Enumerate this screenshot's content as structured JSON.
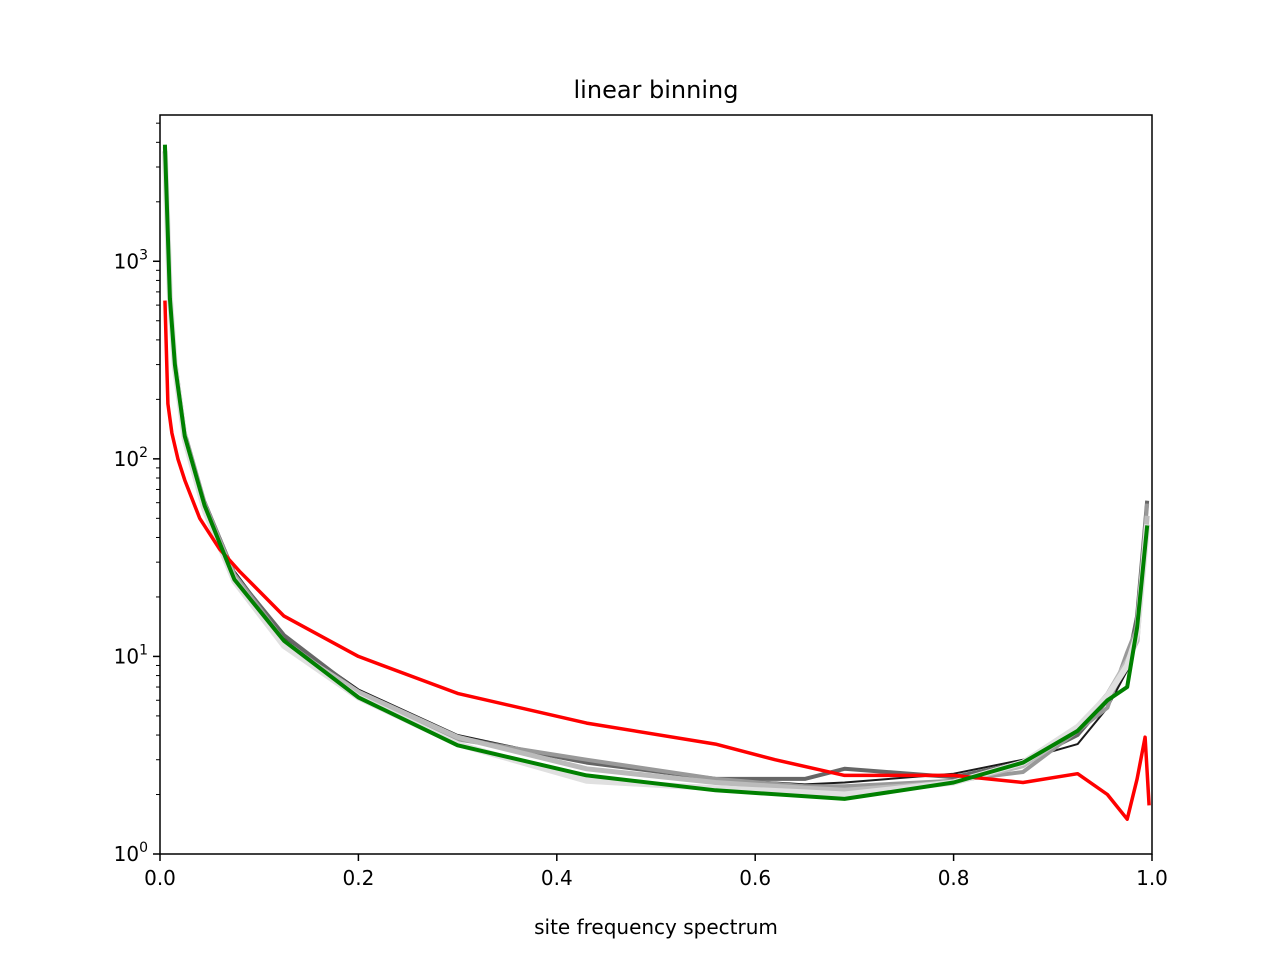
{
  "chart_data": {
    "type": "line",
    "title": "linear binning",
    "xlabel": "site frequency spectrum",
    "ylabel": "",
    "xlim": [
      0.0,
      1.0
    ],
    "ylim": [
      1,
      5500
    ],
    "yscale": "log",
    "grid": false,
    "x_ticks": [
      "0.0",
      "0.2",
      "0.4",
      "0.6",
      "0.8",
      "1.0"
    ],
    "y_ticks": [
      {
        "base": "10",
        "exp": "0"
      },
      {
        "base": "10",
        "exp": "1"
      },
      {
        "base": "10",
        "exp": "2"
      },
      {
        "base": "10",
        "exp": "3"
      }
    ],
    "series": [
      {
        "color": "#1a1a1a",
        "width": 2,
        "x": [
          0.005,
          0.01,
          0.015,
          0.025,
          0.045,
          0.075,
          0.125,
          0.2,
          0.3,
          0.43,
          0.56,
          0.65,
          0.69,
          0.8,
          0.87,
          0.925,
          0.955,
          0.975,
          0.985,
          0.995
        ],
        "y": [
          3600,
          700,
          320,
          135,
          62,
          27,
          12.5,
          6.8,
          4.0,
          2.9,
          2.4,
          2.25,
          2.3,
          2.55,
          3.0,
          3.6,
          5.5,
          8.5,
          17,
          55
        ]
      },
      {
        "color": "#666666",
        "width": 4,
        "x": [
          0.005,
          0.01,
          0.015,
          0.025,
          0.045,
          0.075,
          0.125,
          0.2,
          0.3,
          0.43,
          0.56,
          0.65,
          0.69,
          0.8,
          0.87,
          0.925,
          0.955,
          0.975,
          0.985,
          0.995
        ],
        "y": [
          3700,
          690,
          310,
          130,
          58,
          26,
          12.8,
          6.6,
          3.9,
          2.9,
          2.4,
          2.4,
          2.7,
          2.45,
          2.9,
          4.0,
          6.0,
          9.0,
          16,
          60
        ]
      },
      {
        "color": "#999999",
        "width": 4,
        "x": [
          0.005,
          0.01,
          0.015,
          0.025,
          0.045,
          0.075,
          0.125,
          0.2,
          0.3,
          0.43,
          0.56,
          0.65,
          0.69,
          0.8,
          0.87,
          0.925,
          0.955,
          0.975,
          0.985,
          0.995
        ],
        "y": [
          3650,
          700,
          320,
          135,
          60,
          26,
          12.0,
          6.4,
          3.8,
          3.0,
          2.4,
          2.2,
          2.2,
          2.35,
          2.6,
          4.2,
          5.5,
          10.5,
          14,
          58
        ]
      },
      {
        "color": "#bbbbbb",
        "width": 5,
        "x": [
          0.005,
          0.01,
          0.015,
          0.025,
          0.045,
          0.075,
          0.125,
          0.2,
          0.3,
          0.43,
          0.56,
          0.65,
          0.69,
          0.8,
          0.87,
          0.925,
          0.955,
          0.975,
          0.985,
          0.995
        ],
        "y": [
          3500,
          680,
          300,
          128,
          57,
          25,
          11.5,
          6.6,
          3.9,
          2.7,
          2.3,
          2.15,
          2.1,
          2.3,
          2.8,
          4.3,
          6.4,
          9.5,
          12,
          50
        ]
      },
      {
        "color": "#e0e0e0",
        "width": 6,
        "x": [
          0.005,
          0.01,
          0.015,
          0.025,
          0.045,
          0.075,
          0.125,
          0.2,
          0.3,
          0.43,
          0.56,
          0.65,
          0.69,
          0.8,
          0.87,
          0.925,
          0.955,
          0.975,
          0.985,
          0.995
        ],
        "y": [
          3400,
          660,
          290,
          125,
          55,
          24,
          11.3,
          6.2,
          3.6,
          2.35,
          2.15,
          2.05,
          2.0,
          2.3,
          2.9,
          4.4,
          6.3,
          9.0,
          13,
          45
        ]
      },
      {
        "color": "#ff0000",
        "width": 3.5,
        "x": [
          0.005,
          0.008,
          0.012,
          0.018,
          0.025,
          0.04,
          0.06,
          0.08,
          0.125,
          0.2,
          0.3,
          0.43,
          0.56,
          0.62,
          0.69,
          0.8,
          0.87,
          0.925,
          0.955,
          0.975,
          0.985,
          0.993,
          0.997
        ],
        "y": [
          620,
          190,
          135,
          100,
          78,
          50,
          35,
          27,
          16,
          10,
          6.5,
          4.6,
          3.6,
          3.0,
          2.5,
          2.5,
          2.3,
          2.55,
          2.0,
          1.5,
          2.4,
          3.9,
          1.8
        ]
      },
      {
        "color": "#008000",
        "width": 4,
        "x": [
          0.005,
          0.01,
          0.015,
          0.025,
          0.045,
          0.075,
          0.125,
          0.2,
          0.3,
          0.43,
          0.56,
          0.69,
          0.8,
          0.87,
          0.925,
          0.955,
          0.975,
          0.985,
          0.995
        ],
        "y": [
          3800,
          650,
          300,
          130,
          58,
          24.5,
          12.0,
          6.2,
          3.55,
          2.5,
          2.1,
          1.9,
          2.3,
          2.9,
          4.2,
          6.0,
          7.0,
          14,
          45
        ]
      }
    ]
  }
}
